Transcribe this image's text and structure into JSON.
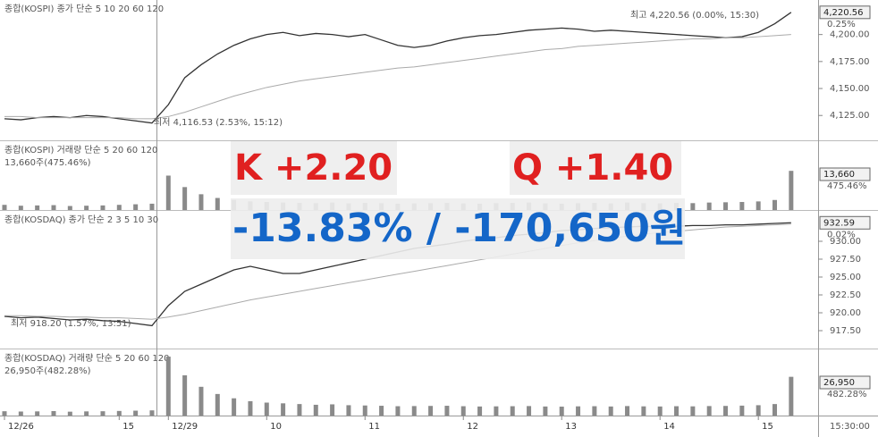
{
  "chart_data": [
    {
      "type": "line",
      "header": "종합(KOSPI)  종가 단순 5 10 20 60 120",
      "high_note": "최고 4,220.56 (0.00%, 15:30)",
      "low_note": "최저 4,116.53 (2.53%, 15:12)",
      "current_label": "4,220.56",
      "change_label": "0.25%",
      "ylim": [
        4102,
        4232
      ],
      "yticks": [
        {
          "value": 4125,
          "label": "4,125.00"
        },
        {
          "value": 4150,
          "label": "4,150.00"
        },
        {
          "value": 4175,
          "label": "4,175.00"
        },
        {
          "value": 4200,
          "label": "4,200.00"
        }
      ],
      "series": [
        {
          "color": "#333333",
          "values": [
            4122,
            4121,
            4123,
            4124,
            4123,
            4125,
            4124,
            4122,
            4120,
            4118,
            4135,
            4160,
            4172,
            4182,
            4190,
            4196,
            4200,
            4202,
            4199,
            4201,
            4200,
            4198,
            4200,
            4195,
            4190,
            4188,
            4190,
            4194,
            4197,
            4199,
            4200,
            4202,
            4204,
            4205,
            4206,
            4205,
            4203,
            4204,
            4203,
            4202,
            4201,
            4200,
            4199,
            4198,
            4197,
            4198,
            4202,
            4210,
            4220.56
          ]
        },
        {
          "color": "#aaaaaa",
          "values": [
            4124,
            4124,
            4123,
            4123,
            4123,
            4123,
            4123,
            4123,
            4122,
            4122,
            4124,
            4128,
            4133,
            4138,
            4143,
            4147,
            4151,
            4154,
            4157,
            4159,
            4161,
            4163,
            4165,
            4167,
            4169,
            4170,
            4172,
            4174,
            4176,
            4178,
            4180,
            4182,
            4184,
            4186,
            4187,
            4189,
            4190,
            4191,
            4192,
            4193,
            4194,
            4195,
            4196,
            4196,
            4197,
            4197,
            4198,
            4199,
            4200
          ]
        }
      ]
    },
    {
      "type": "bar",
      "header": "종합(KOSPI) 거래량  단순 5 20 60 120",
      "summary": "13,660주(475.46%)",
      "current_label": "13,660",
      "change_label": "475.46%",
      "ylim": [
        0,
        24000
      ],
      "color": "#8a8a8a",
      "values": [
        1800,
        1500,
        1600,
        1700,
        1400,
        1500,
        1600,
        1800,
        2000,
        2200,
        12000,
        8000,
        5500,
        4200,
        3500,
        3000,
        2800,
        2600,
        2500,
        2400,
        2600,
        2300,
        2500,
        2400,
        2200,
        2300,
        2400,
        2500,
        2300,
        2200,
        2400,
        2500,
        2600,
        2300,
        2200,
        2400,
        2500,
        2300,
        2600,
        2400,
        2300,
        2500,
        2400,
        2600,
        2700,
        2800,
        3000,
        3500,
        13660
      ]
    },
    {
      "type": "line",
      "header": "종합(KOSDAQ)  종가 단순 2 3 5 10 30",
      "low_note": "최저 918.20 (1.57%, 13:51)",
      "current_label": "932.59",
      "change_label": "0.02%",
      "ylim": [
        915,
        934.25
      ],
      "yticks": [
        {
          "value": 917.5,
          "label": "917.50"
        },
        {
          "value": 920,
          "label": "920.00"
        },
        {
          "value": 922.5,
          "label": "922.50"
        },
        {
          "value": 925,
          "label": "925.00"
        },
        {
          "value": 927.5,
          "label": "927.50"
        },
        {
          "value": 930,
          "label": "930.00"
        }
      ],
      "series": [
        {
          "color": "#333333",
          "values": [
            919.5,
            919.3,
            919.4,
            919.2,
            919.0,
            919.1,
            918.9,
            918.8,
            918.5,
            918.2,
            921,
            923,
            924,
            925,
            926,
            926.5,
            926,
            925.5,
            925.5,
            926,
            926.5,
            927,
            927.5,
            928,
            928.5,
            929,
            929.3,
            929.6,
            930,
            930.3,
            930.5,
            930.8,
            931,
            931.2,
            931.5,
            931.6,
            931.8,
            931.9,
            932,
            932.1,
            932,
            932.1,
            932.2,
            932.2,
            932.3,
            932.3,
            932.4,
            932.5,
            932.59
          ]
        },
        {
          "color": "#aaaaaa",
          "values": [
            919.6,
            919.6,
            919.5,
            919.5,
            919.4,
            919.4,
            919.3,
            919.3,
            919.2,
            919.1,
            919.4,
            919.8,
            920.3,
            920.8,
            921.3,
            921.8,
            922.2,
            922.6,
            923,
            923.4,
            923.8,
            924.2,
            924.6,
            925,
            925.4,
            925.8,
            926.2,
            926.6,
            927,
            927.4,
            927.8,
            928.2,
            928.6,
            929,
            929.4,
            929.8,
            930.1,
            930.4,
            930.7,
            931,
            931.2,
            931.4,
            931.6,
            931.8,
            932,
            932.1,
            932.2,
            932.3,
            932.4
          ]
        }
      ]
    },
    {
      "type": "bar",
      "header": "종합(KOSDAQ) 거래량  단순 5 20 60 120",
      "summary": "26,950주(482.28%)",
      "current_label": "26,950",
      "change_label": "482.28%",
      "ylim": [
        0,
        46000
      ],
      "color": "#8a8a8a",
      "categories": [
        "12/26",
        null,
        null,
        null,
        null,
        null,
        null,
        "15",
        null,
        null,
        "12/29",
        null,
        null,
        null,
        null,
        null,
        "10",
        null,
        null,
        null,
        null,
        null,
        "11",
        null,
        null,
        null,
        null,
        null,
        "12",
        null,
        null,
        null,
        null,
        null,
        "13",
        null,
        null,
        null,
        null,
        null,
        "14",
        null,
        null,
        null,
        null,
        null,
        "15",
        null,
        null
      ],
      "values": [
        3000,
        2800,
        2900,
        3100,
        2700,
        2900,
        3000,
        3200,
        3400,
        3600,
        41000,
        28000,
        20000,
        15000,
        12000,
        10000,
        9000,
        8500,
        8000,
        7500,
        7800,
        7200,
        7000,
        6800,
        6500,
        6600,
        6700,
        6800,
        6500,
        6300,
        6400,
        6500,
        6600,
        6300,
        6200,
        6400,
        6500,
        6300,
        6600,
        6400,
        6300,
        6500,
        6400,
        6600,
        6700,
        6900,
        7200,
        8000,
        26950
      ]
    }
  ],
  "time_label": "15:30:00",
  "overlay": {
    "k": "K +2.20",
    "q": "Q +1.40",
    "pnl": "-13.83% / -170,650원"
  }
}
